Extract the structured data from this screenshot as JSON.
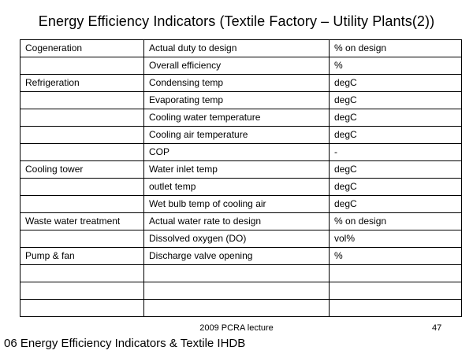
{
  "slide": {
    "title": "Energy Efficiency Indicators (Textile Factory – Utility Plants(2))",
    "footer_center": "2009 PCRA lecture",
    "page_number": "47",
    "footer_note": "06 Energy Efficiency Indicators & Textile IHDB"
  },
  "table": {
    "rows": [
      {
        "plant": "Cogeneration",
        "indicator": "Actual duty to design",
        "unit": "% on design"
      },
      {
        "plant": "",
        "indicator": "Overall efficiency",
        "unit": "%"
      },
      {
        "plant": "Refrigeration",
        "indicator": "Condensing temp",
        "unit": "degC"
      },
      {
        "plant": "",
        "indicator": "Evaporating temp",
        "unit": "degC"
      },
      {
        "plant": "",
        "indicator": "Cooling water temperature",
        "unit": "degC"
      },
      {
        "plant": "",
        "indicator": "Cooling air temperature",
        "unit": "degC"
      },
      {
        "plant": "",
        "indicator": "COP",
        "unit": "-"
      },
      {
        "plant": "Cooling tower",
        "indicator": "Water inlet temp",
        "unit": "degC"
      },
      {
        "plant": "",
        "indicator": "outlet temp",
        "unit": "degC"
      },
      {
        "plant": "",
        "indicator": "Wet bulb temp of cooling air",
        "unit": "degC"
      },
      {
        "plant": "Waste water treatment",
        "indicator": "Actual water rate to design",
        "unit": "% on design"
      },
      {
        "plant": "",
        "indicator": "Dissolved oxygen (DO)",
        "unit": "vol%"
      },
      {
        "plant": "Pump & fan",
        "indicator": "Discharge valve opening",
        "unit": "%"
      },
      {
        "plant": "",
        "indicator": "",
        "unit": ""
      },
      {
        "plant": "",
        "indicator": "",
        "unit": ""
      },
      {
        "plant": "",
        "indicator": "",
        "unit": ""
      }
    ]
  }
}
